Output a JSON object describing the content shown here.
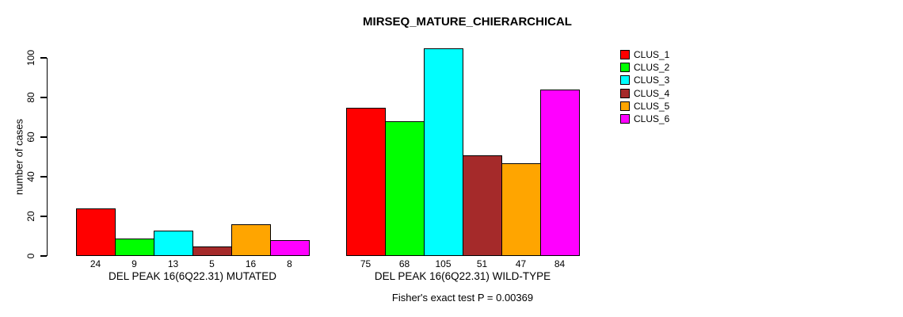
{
  "chart_data": {
    "type": "bar",
    "title": "MIRSEQ_MATURE_CHIERARCHICAL",
    "ylabel": "number of cases",
    "xlabel": "",
    "ylim": [
      0,
      110
    ],
    "yticks": [
      0,
      20,
      40,
      60,
      80,
      100
    ],
    "grid": false,
    "legend_position": "right",
    "bar_value_labels_shown": true,
    "categories": [
      "DEL PEAK 16(6Q22.31) MUTATED",
      "DEL PEAK 16(6Q22.31) WILD-TYPE"
    ],
    "series": [
      {
        "name": "CLUS_1",
        "color": "#ff0000",
        "values": [
          24,
          75
        ]
      },
      {
        "name": "CLUS_2",
        "color": "#00ff00",
        "values": [
          9,
          68
        ]
      },
      {
        "name": "CLUS_3",
        "color": "#00ffff",
        "values": [
          13,
          105
        ]
      },
      {
        "name": "CLUS_4",
        "color": "#a52a2a",
        "values": [
          5,
          51
        ]
      },
      {
        "name": "CLUS_5",
        "color": "#ffa500",
        "values": [
          16,
          47
        ]
      },
      {
        "name": "CLUS_6",
        "color": "#ff00ff",
        "values": [
          8,
          84
        ]
      }
    ],
    "annotation": "Fisher's exact test P = 0.00369",
    "axis_color": "#000000",
    "bar_border_color": "#000000"
  }
}
